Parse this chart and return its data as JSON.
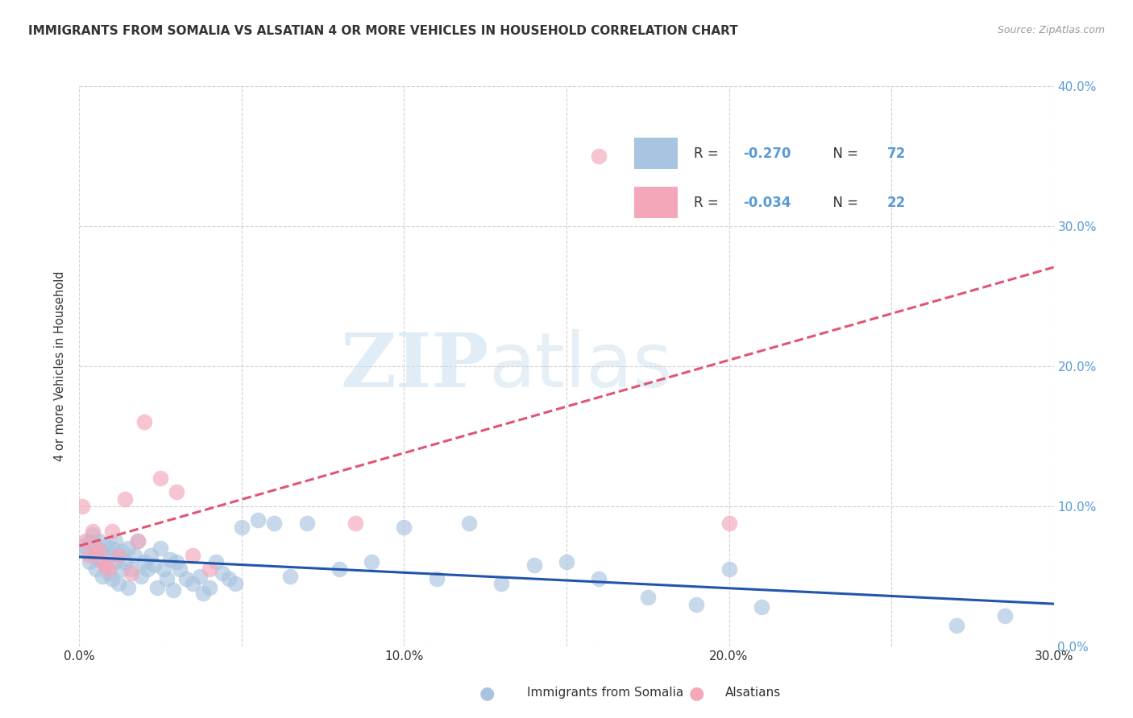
{
  "title": "IMMIGRANTS FROM SOMALIA VS ALSATIAN 4 OR MORE VEHICLES IN HOUSEHOLD CORRELATION CHART",
  "source": "Source: ZipAtlas.com",
  "ylabel": "4 or more Vehicles in Household",
  "legend_label1": "Immigrants from Somalia",
  "legend_label2": "Alsatians",
  "R1": -0.27,
  "N1": 72,
  "R2": -0.034,
  "N2": 22,
  "color1": "#a8c4e0",
  "color2": "#f4a7b9",
  "line_color1": "#2255aa",
  "line_color2": "#e05575",
  "text_color": "#333333",
  "blue_label_color": "#5b9bd5",
  "xlim": [
    0.0,
    0.3
  ],
  "ylim": [
    0.0,
    0.4
  ],
  "xticks": [
    0.0,
    0.05,
    0.1,
    0.15,
    0.2,
    0.25,
    0.3
  ],
  "yticks": [
    0.0,
    0.1,
    0.2,
    0.3,
    0.4
  ],
  "xticklabels": [
    "0.0%",
    "",
    "10.0%",
    "",
    "20.0%",
    "",
    "30.0%"
  ],
  "yticklabels_right": [
    "0.0%",
    "10.0%",
    "20.0%",
    "30.0%",
    "40.0%"
  ],
  "watermark_zip": "ZIP",
  "watermark_atlas": "atlas",
  "background_color": "#ffffff",
  "grid_color": "#cccccc",
  "blue_x": [
    0.001,
    0.002,
    0.003,
    0.003,
    0.004,
    0.004,
    0.005,
    0.005,
    0.006,
    0.006,
    0.007,
    0.007,
    0.008,
    0.008,
    0.009,
    0.009,
    0.01,
    0.01,
    0.011,
    0.011,
    0.012,
    0.012,
    0.013,
    0.013,
    0.014,
    0.015,
    0.015,
    0.016,
    0.017,
    0.018,
    0.019,
    0.02,
    0.021,
    0.022,
    0.023,
    0.024,
    0.025,
    0.026,
    0.027,
    0.028,
    0.029,
    0.03,
    0.031,
    0.033,
    0.035,
    0.037,
    0.038,
    0.04,
    0.042,
    0.044,
    0.046,
    0.048,
    0.05,
    0.055,
    0.06,
    0.065,
    0.07,
    0.08,
    0.09,
    0.1,
    0.11,
    0.12,
    0.13,
    0.14,
    0.15,
    0.16,
    0.175,
    0.19,
    0.2,
    0.21,
    0.27,
    0.285
  ],
  "blue_y": [
    0.072,
    0.068,
    0.075,
    0.06,
    0.065,
    0.08,
    0.07,
    0.055,
    0.075,
    0.062,
    0.068,
    0.05,
    0.058,
    0.072,
    0.065,
    0.052,
    0.07,
    0.048,
    0.06,
    0.075,
    0.065,
    0.045,
    0.068,
    0.055,
    0.06,
    0.07,
    0.042,
    0.055,
    0.065,
    0.075,
    0.05,
    0.06,
    0.055,
    0.065,
    0.058,
    0.042,
    0.07,
    0.055,
    0.048,
    0.062,
    0.04,
    0.06,
    0.055,
    0.048,
    0.045,
    0.05,
    0.038,
    0.042,
    0.06,
    0.052,
    0.048,
    0.045,
    0.085,
    0.09,
    0.088,
    0.05,
    0.088,
    0.055,
    0.06,
    0.085,
    0.048,
    0.088,
    0.045,
    0.058,
    0.06,
    0.048,
    0.035,
    0.03,
    0.055,
    0.028,
    0.015,
    0.022
  ],
  "pink_x": [
    0.001,
    0.002,
    0.003,
    0.004,
    0.005,
    0.006,
    0.007,
    0.008,
    0.009,
    0.01,
    0.012,
    0.014,
    0.016,
    0.018,
    0.02,
    0.025,
    0.03,
    0.035,
    0.04,
    0.085,
    0.16,
    0.2
  ],
  "pink_y": [
    0.1,
    0.075,
    0.065,
    0.082,
    0.07,
    0.068,
    0.06,
    0.058,
    0.055,
    0.082,
    0.065,
    0.105,
    0.052,
    0.075,
    0.16,
    0.12,
    0.11,
    0.065,
    0.055,
    0.088,
    0.35,
    0.088
  ]
}
